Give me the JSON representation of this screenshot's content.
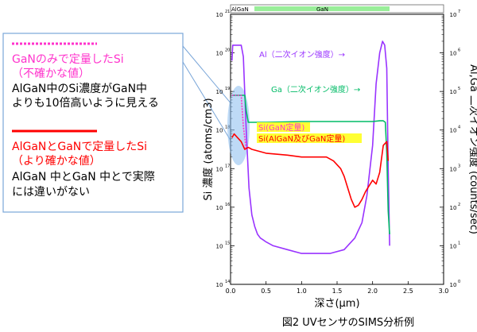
{
  "caption": "図2 UVセンサのSIMS分析例",
  "legend_box": {
    "entry1": {
      "title": "GaNのみで定量したSi",
      "subtitle": "（不確かな値）",
      "desc1": "AlGaN中のSi濃度がGaN中",
      "desc2": "よりも10倍高いように見える",
      "color": "#ff33cc"
    },
    "entry2": {
      "title": "AlGaNとGaNで定量したSi",
      "subtitle": "（より確かな値）",
      "desc1": "AlGaN 中とGaN 中とで実際",
      "desc2": "には違いがない",
      "color": "#ff0000"
    }
  },
  "layer_bar": {
    "left_label": "AlGaN",
    "right_label": "GaN",
    "color": "#99ee99"
  },
  "annotations": {
    "al": "Al（二次イオン強度）→",
    "ga": "Ga（二次イオン強度）→",
    "si_gan": "Si(GaN定量)",
    "si_algan": "Si(AlGaN及びGaN定量)"
  },
  "colors": {
    "al": "#9933ff",
    "ga": "#00bb66",
    "si_red": "#ff0000",
    "si_pink": "#ff33cc",
    "highlight": "#ffff33",
    "ellipse": "#88bbee"
  },
  "chart_data": {
    "type": "line",
    "xlabel": "深さ(μm)",
    "ylabel_left": "Si 濃度 (atoms/cm3)",
    "ylabel_right": "Al,Ga 二次イオン強度 (counts/sec)",
    "xlim": [
      0.0,
      3.0
    ],
    "x_ticks": [
      "0.0",
      "0.5",
      "1.0",
      "1.5",
      "2.0",
      "2.5",
      "3.0"
    ],
    "ylim_left_log10": [
      14,
      21
    ],
    "ylim_right_log10": [
      0,
      7
    ],
    "y_left_ticks": [
      "10",
      "10",
      "10",
      "10",
      "10",
      "10",
      "10",
      "10"
    ],
    "y_left_exponents": [
      "14",
      "15",
      "16",
      "17",
      "18",
      "19",
      "20",
      "21"
    ],
    "y_right_ticks": [
      "10",
      "10",
      "10",
      "10",
      "10",
      "10",
      "10",
      "10"
    ],
    "y_right_exponents": [
      "0",
      "1",
      "2",
      "3",
      "4",
      "5",
      "6",
      "7"
    ],
    "series": [
      {
        "name": "Al",
        "axis": "right",
        "log10_y": true,
        "x": [
          0.02,
          0.03,
          0.05,
          0.1,
          0.15,
          0.18,
          0.22,
          0.26,
          0.3,
          0.34,
          0.38,
          0.42,
          0.46,
          0.5,
          0.6,
          0.8,
          1.0,
          1.2,
          1.4,
          1.6,
          1.75,
          1.85,
          1.92,
          2.0,
          2.05,
          2.1,
          2.14,
          2.17,
          2.2,
          2.22,
          2.24
        ],
        "y": [
          5.8,
          6.2,
          6.2,
          6.2,
          6.2,
          5.9,
          4.0,
          2.5,
          1.8,
          1.5,
          1.3,
          1.2,
          1.15,
          1.1,
          1.0,
          0.9,
          0.8,
          0.8,
          0.8,
          0.9,
          1.2,
          1.6,
          2.3,
          3.6,
          5.2,
          6.0,
          6.3,
          6.2,
          5.6,
          3.0,
          1.0
        ]
      },
      {
        "name": "Ga",
        "axis": "right",
        "log10_y": true,
        "x": [
          0.02,
          0.05,
          0.1,
          0.15,
          0.2,
          0.22,
          0.25,
          0.3,
          0.5,
          1.0,
          1.5,
          2.0,
          2.1,
          2.15,
          2.18,
          2.2,
          2.22,
          2.24
        ],
        "y": [
          4.9,
          4.9,
          4.9,
          4.9,
          4.9,
          4.5,
          4.2,
          4.2,
          4.2,
          4.22,
          4.22,
          4.22,
          4.24,
          4.24,
          4.2,
          3.4,
          1.9,
          1.3
        ]
      },
      {
        "name": "Si(GaN定量)",
        "axis": "left",
        "log10_y": true,
        "x": [
          0.02,
          0.05,
          0.1,
          0.15,
          0.18,
          0.2,
          0.22
        ],
        "y": [
          18.9,
          18.9,
          18.9,
          18.9,
          18.1,
          17.8,
          17.5
        ]
      },
      {
        "name": "Si(AlGaN及びGaN定量)",
        "axis": "left",
        "log10_y": true,
        "x": [
          0.02,
          0.05,
          0.1,
          0.15,
          0.2,
          0.25,
          0.3,
          0.5,
          0.8,
          1.0,
          1.2,
          1.35,
          1.45,
          1.55,
          1.6,
          1.65,
          1.7,
          1.75,
          1.8,
          1.85,
          1.9,
          1.95,
          2.0,
          2.05,
          2.1,
          2.15,
          2.2,
          2.22
        ],
        "y": [
          17.8,
          17.9,
          17.8,
          17.7,
          17.5,
          17.55,
          17.5,
          17.4,
          17.35,
          17.3,
          17.3,
          17.3,
          17.2,
          17.0,
          16.8,
          16.5,
          16.2,
          16.0,
          16.05,
          16.2,
          16.4,
          16.55,
          16.7,
          16.6,
          16.9,
          17.6,
          17.7,
          17.2
        ]
      }
    ]
  }
}
